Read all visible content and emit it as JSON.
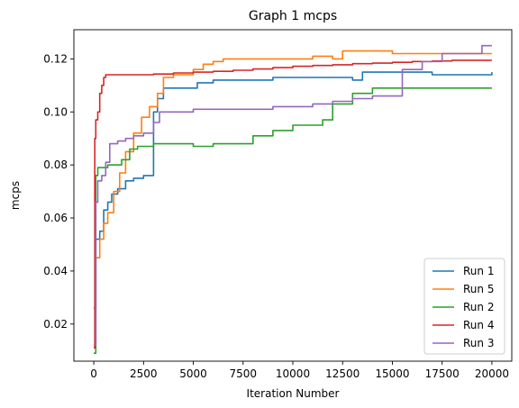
{
  "chart_data": {
    "type": "line",
    "title": "Graph 1 mcps",
    "xlabel": "Iteration Number",
    "ylabel": "mcps",
    "xlim": [
      -1000,
      21000
    ],
    "ylim": [
      0.006,
      0.131
    ],
    "xticks": [
      0,
      2500,
      5000,
      7500,
      10000,
      12500,
      15000,
      17500,
      20000
    ],
    "yticks": [
      0.02,
      0.04,
      0.06,
      0.08,
      0.1,
      0.12
    ],
    "xtick_labels": [
      "0",
      "2500",
      "5000",
      "7500",
      "10000",
      "12500",
      "15000",
      "17500",
      "20000"
    ],
    "ytick_labels": [
      "0.02",
      "0.04",
      "0.06",
      "0.08",
      "0.10",
      "0.12"
    ],
    "grid": false,
    "legend_position": "lower-right",
    "series": [
      {
        "name": "Run 1",
        "color": "#1f77b4",
        "x": [
          0,
          100,
          300,
          500,
          700,
          900,
          1200,
          1600,
          2000,
          2500,
          2900,
          3000,
          3200,
          3500,
          4500,
          5200,
          6000,
          7000,
          8000,
          9000,
          10000,
          11000,
          12000,
          13000,
          13500,
          15000,
          17000,
          18500,
          20000
        ],
        "y": [
          0.026,
          0.052,
          0.055,
          0.063,
          0.066,
          0.069,
          0.071,
          0.074,
          0.075,
          0.076,
          0.076,
          0.1,
          0.105,
          0.109,
          0.109,
          0.111,
          0.112,
          0.112,
          0.112,
          0.113,
          0.113,
          0.113,
          0.113,
          0.112,
          0.115,
          0.115,
          0.114,
          0.114,
          0.115
        ]
      },
      {
        "name": "Run 5",
        "color": "#ff7f0e",
        "x": [
          0,
          100,
          300,
          500,
          700,
          1000,
          1300,
          1600,
          2000,
          2400,
          2800,
          3200,
          3500,
          4000,
          5000,
          5500,
          6000,
          6500,
          7500,
          9000,
          10000,
          11000,
          12000,
          12500,
          13000,
          15000,
          17000,
          19000,
          20000
        ],
        "y": [
          0.012,
          0.045,
          0.052,
          0.058,
          0.062,
          0.07,
          0.077,
          0.085,
          0.092,
          0.098,
          0.102,
          0.107,
          0.113,
          0.114,
          0.116,
          0.118,
          0.119,
          0.12,
          0.12,
          0.12,
          0.12,
          0.121,
          0.12,
          0.123,
          0.123,
          0.122,
          0.122,
          0.122,
          0.122
        ]
      },
      {
        "name": "Run 2",
        "color": "#2ca02c",
        "x": [
          0,
          100,
          200,
          400,
          700,
          1000,
          1400,
          1800,
          2200,
          2500,
          3000,
          4000,
          5000,
          6000,
          7000,
          7500,
          8000,
          9000,
          10000,
          11000,
          11500,
          12000,
          13000,
          14000,
          15000,
          16000,
          17000,
          18000,
          19000,
          20000
        ],
        "y": [
          0.009,
          0.076,
          0.079,
          0.079,
          0.08,
          0.08,
          0.082,
          0.086,
          0.087,
          0.087,
          0.088,
          0.088,
          0.087,
          0.088,
          0.088,
          0.088,
          0.091,
          0.093,
          0.095,
          0.095,
          0.097,
          0.103,
          0.107,
          0.109,
          0.109,
          0.109,
          0.109,
          0.109,
          0.109,
          0.109
        ]
      },
      {
        "name": "Run 4",
        "color": "#d62728",
        "x": [
          0,
          50,
          100,
          200,
          300,
          400,
          500,
          600,
          800,
          1200,
          2000,
          3000,
          4000,
          5000,
          6000,
          7000,
          8000,
          9000,
          10000,
          11000,
          12000,
          13000,
          14000,
          15000,
          16000,
          17000,
          18000,
          19000,
          20000
        ],
        "y": [
          0.011,
          0.09,
          0.097,
          0.1,
          0.107,
          0.11,
          0.113,
          0.114,
          0.114,
          0.114,
          0.114,
          0.1143,
          0.1147,
          0.115,
          0.1153,
          0.1157,
          0.1162,
          0.1167,
          0.1172,
          0.1175,
          0.1178,
          0.1182,
          0.1184,
          0.1187,
          0.119,
          0.1192,
          0.1195,
          0.1195,
          0.1195
        ]
      },
      {
        "name": "Run 3",
        "color": "#9467bd",
        "x": [
          0,
          100,
          200,
          400,
          600,
          800,
          1200,
          1600,
          2000,
          2500,
          3000,
          3300,
          4000,
          5000,
          6000,
          7000,
          8000,
          9000,
          10000,
          11000,
          12000,
          13000,
          14000,
          15000,
          15500,
          16500,
          17500,
          18500,
          19500,
          20000
        ],
        "y": [
          0.012,
          0.066,
          0.074,
          0.076,
          0.081,
          0.088,
          0.089,
          0.09,
          0.091,
          0.092,
          0.096,
          0.1,
          0.1,
          0.101,
          0.101,
          0.101,
          0.101,
          0.102,
          0.102,
          0.103,
          0.104,
          0.105,
          0.106,
          0.106,
          0.116,
          0.119,
          0.122,
          0.122,
          0.125,
          0.125
        ]
      }
    ]
  }
}
